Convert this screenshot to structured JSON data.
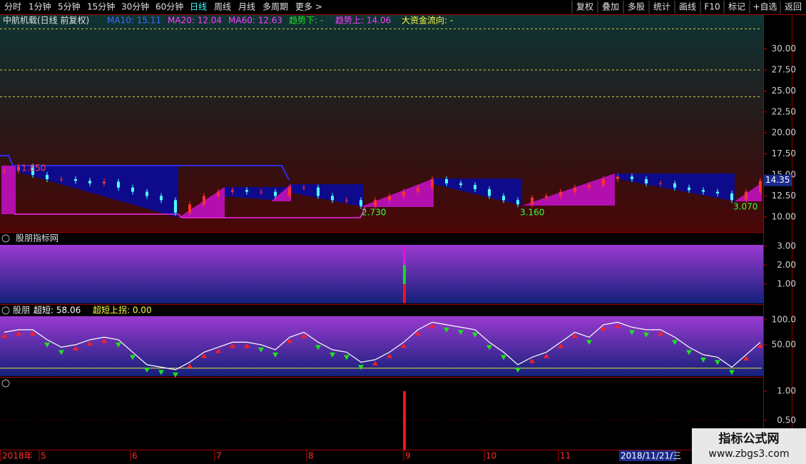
{
  "toolbar": {
    "periods": [
      "分时",
      "1分钟",
      "5分钟",
      "15分钟",
      "30分钟",
      "60分钟",
      "日线",
      "周线",
      "月线",
      "多周期",
      "更多 >"
    ],
    "active": 6,
    "buttons": [
      "复权",
      "叠加",
      "多股",
      "统计",
      "画线",
      "F10",
      "标记",
      "+自选",
      "返回"
    ]
  },
  "main": {
    "title": "中航机载(日线 前复权)",
    "indicators": [
      {
        "text": "MA10: 15.11",
        "color": "#3a6cff"
      },
      {
        "text": "MA20: 12.04",
        "color": "#ff40ff"
      },
      {
        "text": "MA60: 12.63",
        "color": "#ff40ff"
      },
      {
        "text": "趋势下: -",
        "color": "#20e020"
      },
      {
        "text": "趋势上: 14.06",
        "color": "#ff40ff"
      },
      {
        "text": "大资金流向: -",
        "color": "#ffff40"
      }
    ],
    "ylim": [
      8.8,
      32.6
    ],
    "yticks": [
      {
        "value": 30,
        "label": "30.00"
      },
      {
        "value": 27.5,
        "label": "27.50"
      },
      {
        "value": 25,
        "label": "25.00"
      },
      {
        "value": 22.5,
        "label": "22.50"
      },
      {
        "value": 20,
        "label": "20.00"
      },
      {
        "value": 17.5,
        "label": "17.50"
      },
      {
        "value": 15,
        "label": "15.00"
      },
      {
        "value": 12.5,
        "label": "12.50"
      },
      {
        "value": 10,
        "label": "10.00"
      }
    ],
    "levels": [
      32.4,
      27.5,
      24.3
    ],
    "last_price": 14.35,
    "annotations": [
      "1.850",
      "2.730",
      "3.160",
      "3.070"
    ],
    "closes": [
      15.5,
      16,
      15,
      14.5,
      14.5,
      14.3,
      14,
      14.2,
      13.5,
      13,
      12.5,
      12,
      10.5,
      11.5,
      12.5,
      13,
      13.2,
      13,
      13,
      12.5,
      13.5,
      13.5,
      12.5,
      12,
      12,
      11.3,
      12,
      12.5,
      13,
      13.5,
      14.5,
      14,
      13.8,
      13.3,
      12.5,
      12,
      11.5,
      12.3,
      12.5,
      13,
      13.5,
      13.8,
      14.5,
      14.8,
      14.5,
      14,
      14,
      13.5,
      13.2,
      13,
      12.8,
      12,
      13,
      14.3
    ]
  },
  "panel2": {
    "title": "股朋指标网",
    "ylim": [
      0,
      3.07
    ],
    "yticks": [
      {
        "value": 3,
        "label": "3.00"
      },
      {
        "value": 2,
        "label": "2.00"
      },
      {
        "value": 1,
        "label": "1.00"
      }
    ],
    "segments": [
      {
        "color": "#ff1010",
        "value": 1
      },
      {
        "color": "#10e010",
        "value": 1
      },
      {
        "color": "#e010e0",
        "value": 1
      }
    ]
  },
  "panel3": {
    "title": "股朋",
    "indicators": [
      {
        "text": "超短: 58.06",
        "color": "#ffffff"
      },
      {
        "text": "超短上拐: 0.00",
        "color": "#ffff40"
      }
    ],
    "ylim": [
      -13,
      107
    ],
    "yticks": [
      {
        "value": 100,
        "label": "100.0"
      },
      {
        "value": 50,
        "label": "50.00"
      }
    ],
    "signal_level": 3,
    "values": [
      75,
      80,
      80,
      60,
      45,
      50,
      60,
      65,
      60,
      35,
      10,
      5,
      0,
      15,
      35,
      45,
      55,
      55,
      50,
      40,
      65,
      75,
      55,
      40,
      35,
      15,
      20,
      35,
      55,
      80,
      95,
      90,
      85,
      80,
      55,
      35,
      10,
      25,
      35,
      55,
      75,
      65,
      90,
      95,
      85,
      80,
      80,
      65,
      45,
      30,
      25,
      5,
      30,
      55
    ]
  },
  "panel4": {
    "ylim": [
      0,
      1.22
    ],
    "yticks": [
      {
        "value": 1,
        "label": "1.00"
      },
      {
        "value": 0.5,
        "label": "0.50"
      }
    ],
    "bar": 1
  },
  "xaxis": {
    "labels": [
      "2018年",
      "5",
      "6",
      "7",
      "8",
      "9",
      "10",
      "11"
    ],
    "cursor_date": "2018/11/21/三"
  },
  "watermark": {
    "title": "指标公式网",
    "url": "www.zbgs3.com"
  }
}
